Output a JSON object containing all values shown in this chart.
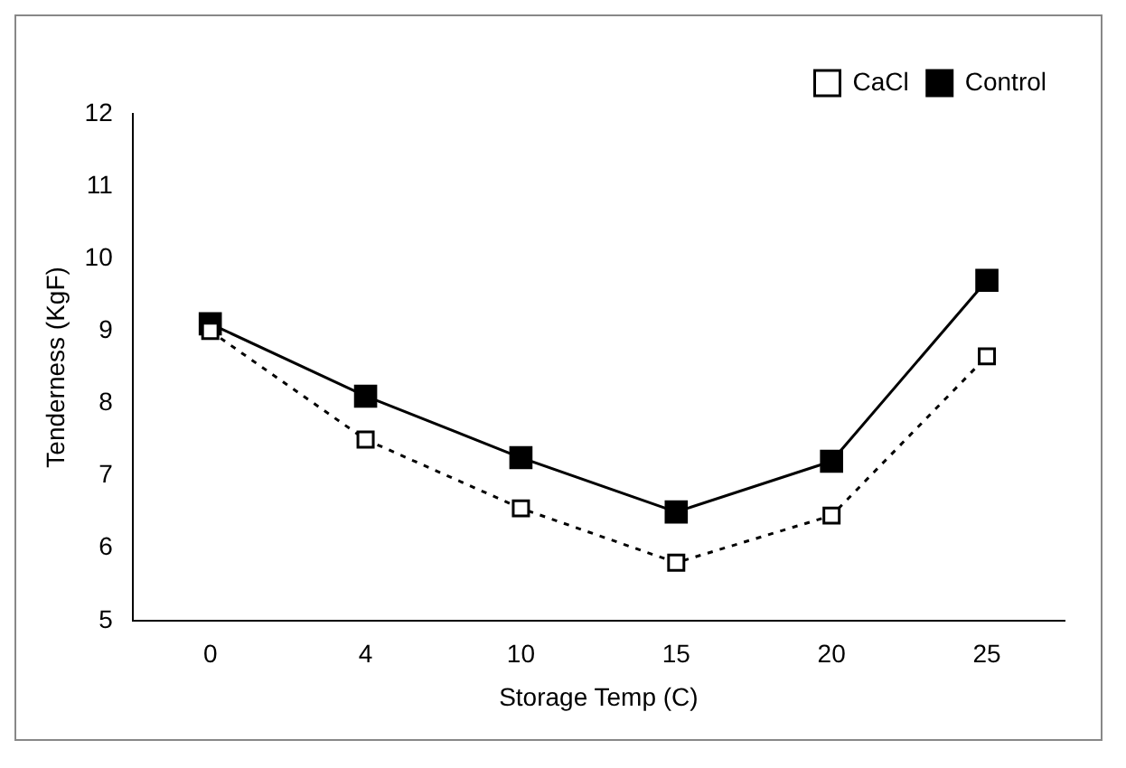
{
  "chart_data": {
    "type": "line",
    "xlabel": "Storage Temp (C)",
    "ylabel": "Tenderness (KgF)",
    "categories": [
      "0",
      "4",
      "10",
      "15",
      "20",
      "25"
    ],
    "series": [
      {
        "name": "CaCl",
        "color": "#000000",
        "values": [
          9.0,
          7.5,
          6.55,
          5.8,
          6.45,
          8.65
        ],
        "line_style": "dotted"
      },
      {
        "name": "Control",
        "color": "#000000",
        "values": [
          9.1,
          8.1,
          7.25,
          6.5,
          7.2,
          9.7
        ],
        "line_style": "solid"
      }
    ],
    "ylim": [
      5,
      12
    ],
    "yticks": [
      5,
      6,
      7,
      8,
      9,
      10,
      11,
      12
    ],
    "grid": false,
    "legend": "top right",
    "marker": "square"
  }
}
